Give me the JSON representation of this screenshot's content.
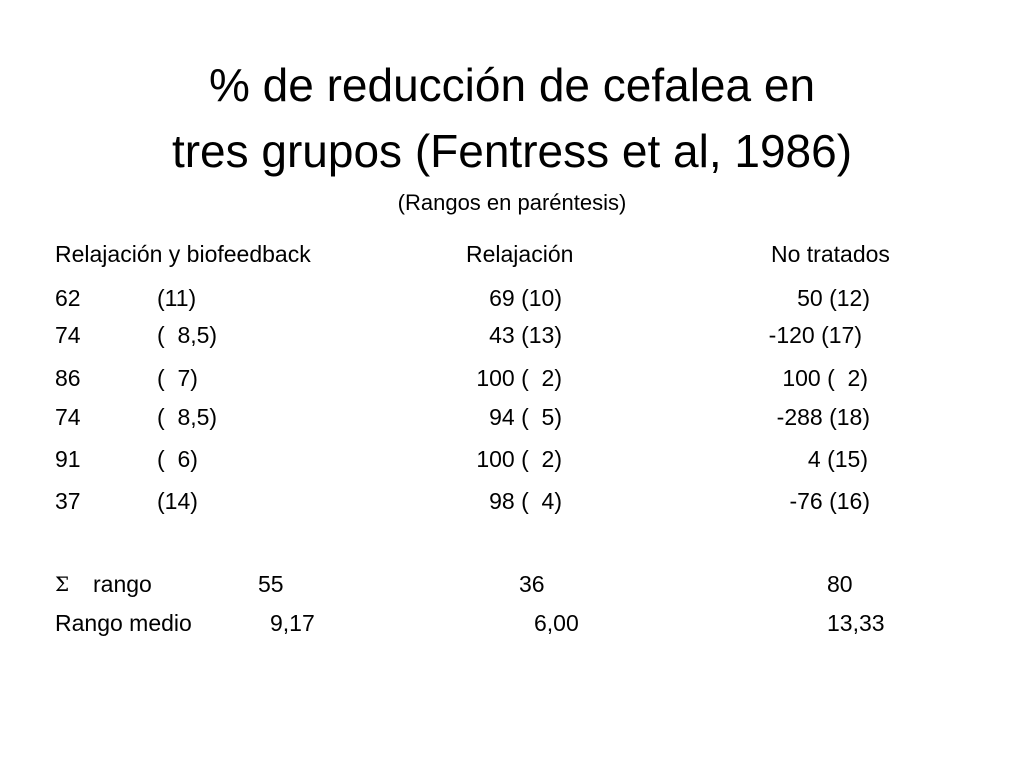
{
  "title": {
    "line1": "% de reducción de cefalea en",
    "line2": "tres grupos (Fentress et al, 1986)"
  },
  "subtitle": "(Rangos en paréntesis)",
  "table": {
    "headers": [
      "Relajación y biofeedback",
      "Relajación",
      "No tratados"
    ],
    "rows": [
      {
        "g1_value": "62",
        "g1_rank": "(11)",
        "g2": "69 (10)",
        "g3": "50 (12)"
      },
      {
        "g1_value": "74",
        "g1_rank": "(  8,5)",
        "g2": "43 (13)",
        "g3": "-120 (17)"
      },
      {
        "g1_value": "86",
        "g1_rank": "(  7)",
        "g2": "100 (  2)",
        "g3": "100 (  2)"
      },
      {
        "g1_value": "74",
        "g1_rank": "(  8,5)",
        "g2": "94 (  5)",
        "g3": "-288 (18)"
      },
      {
        "g1_value": "91",
        "g1_rank": "(  6)",
        "g2": "100 (  2)",
        "g3": "4 (15)"
      },
      {
        "g1_value": "37",
        "g1_rank": "(14)",
        "g2": "98 (  4)",
        "g3": "-76 (16)"
      }
    ]
  },
  "summary": {
    "sum_rank": {
      "symbol": "Σ",
      "label": "rango",
      "values": [
        "55",
        "36",
        "80"
      ]
    },
    "mean_rank": {
      "label": "Rango medio",
      "values": [
        "9,17",
        "6,00",
        "13,33"
      ]
    }
  }
}
